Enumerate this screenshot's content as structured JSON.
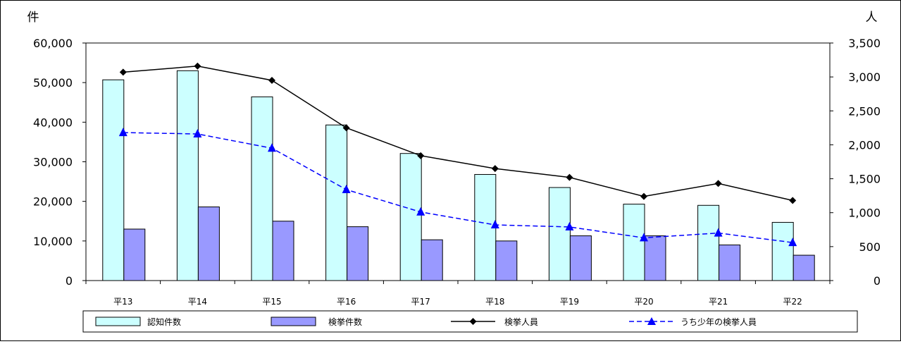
{
  "chart_data": {
    "type": "bar",
    "categories": [
      "平13",
      "平14",
      "平15",
      "平16",
      "平17",
      "平18",
      "平19",
      "平20",
      "平21",
      "平22"
    ],
    "left_axis": {
      "unit_label": "件",
      "ylim": [
        0,
        60000
      ],
      "ticks": [
        0,
        10000,
        20000,
        30000,
        40000,
        50000,
        60000
      ],
      "tick_labels": [
        "0",
        "10,000",
        "20,000",
        "30,000",
        "40,000",
        "50,000",
        "60,000"
      ]
    },
    "right_axis": {
      "unit_label": "人",
      "ylim": [
        0,
        3500
      ],
      "ticks": [
        0,
        500,
        1000,
        1500,
        2000,
        2500,
        3000,
        3500
      ],
      "tick_labels": [
        "0",
        "500",
        "1,000",
        "1,500",
        "2,000",
        "2,500",
        "3,000",
        "3,500"
      ]
    },
    "series": [
      {
        "name": "認知件数",
        "type": "bar",
        "axis": "left",
        "color": "#ccffff",
        "values": [
          50700,
          53000,
          46400,
          39300,
          32100,
          26800,
          23500,
          19300,
          19000,
          14700
        ]
      },
      {
        "name": "検挙件数",
        "type": "bar",
        "axis": "left",
        "color": "#9999ff",
        "values": [
          13000,
          18600,
          15000,
          13600,
          10300,
          10000,
          11300,
          11300,
          9000,
          6400
        ]
      },
      {
        "name": "検挙人員",
        "type": "line",
        "axis": "right",
        "color": "#000000",
        "values": [
          3070,
          3160,
          2950,
          2250,
          1840,
          1650,
          1520,
          1240,
          1430,
          1180
        ]
      },
      {
        "name": "うち少年の検挙人員",
        "type": "line",
        "axis": "right",
        "color": "#0000ff",
        "dashed": true,
        "values": [
          2180,
          2160,
          1950,
          1340,
          1010,
          820,
          790,
          630,
          700,
          560
        ]
      }
    ],
    "legend_position": "bottom",
    "grid": false
  }
}
